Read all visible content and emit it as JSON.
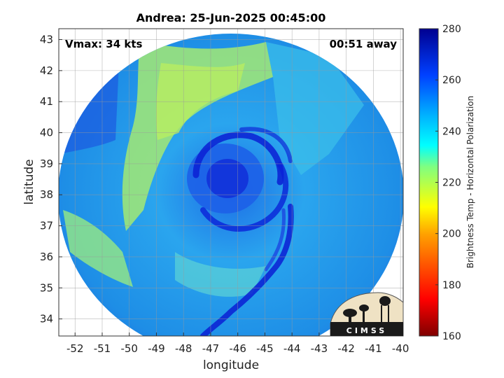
{
  "title": "Andrea: 25-Jun-2025 00:45:00",
  "vmax_label": "Vmax: 34 kts",
  "away_label": "00:51 away",
  "xlabel": "longitude",
  "ylabel": "latitude",
  "colorbar_label": "Brightness Temp - Horizontal Polarization",
  "logo_text": "CIMSS",
  "x_ticks": [
    -52,
    -51,
    -50,
    -49,
    -48,
    -47,
    -46,
    -45,
    -44,
    -43,
    -42,
    -41,
    -40
  ],
  "y_ticks": [
    34,
    35,
    36,
    37,
    38,
    39,
    40,
    41,
    42,
    43
  ],
  "colorbar_ticks": [
    160,
    180,
    200,
    220,
    240,
    260,
    280
  ],
  "xlim": [
    -52.6,
    -39.9
  ],
  "ylim": [
    33.45,
    43.35
  ],
  "colorbar_range": [
    160,
    280
  ],
  "colors": {
    "background_swath": "#1f9ae8",
    "cold_core": "#0a1ed4",
    "warm_band": "#a8e86a"
  }
}
